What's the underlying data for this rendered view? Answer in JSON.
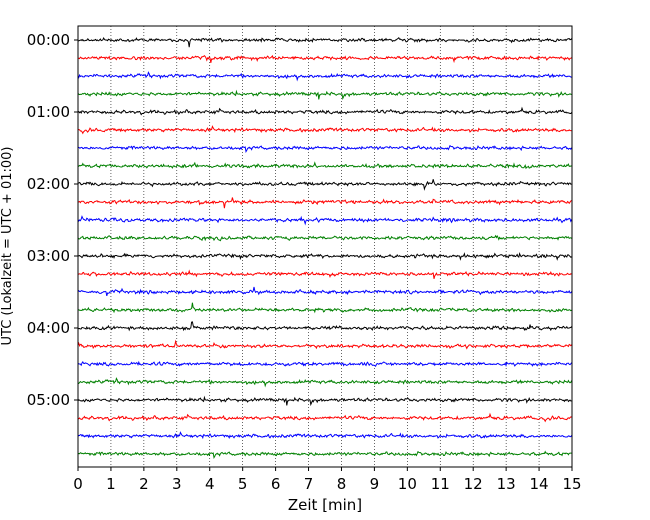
{
  "chart_data": {
    "type": "line",
    "title": "",
    "xlabel": "Zeit  [min]",
    "ylabel": "UTC (Lokalzeit = UTC + 01:00)",
    "xlim": [
      0,
      15
    ],
    "xticks": [
      0,
      1,
      2,
      3,
      4,
      5,
      6,
      7,
      8,
      9,
      10,
      11,
      12,
      13,
      14,
      15
    ],
    "xtick_labels": [
      "0",
      "1",
      "2",
      "3",
      "4",
      "5",
      "6",
      "7",
      "8",
      "9",
      "10",
      "11",
      "12",
      "13",
      "14",
      "15"
    ],
    "ytick_labels": [
      "00:00",
      "01:00",
      "02:00",
      "03:00",
      "04:00",
      "05:00"
    ],
    "minutes_per_trace": 15,
    "trace_count": 24,
    "trace_colors": [
      "#000000",
      "#ff0000",
      "#0000ff",
      "#008000"
    ],
    "grid": {
      "x": true,
      "style": "dotted"
    },
    "legend": "none"
  }
}
